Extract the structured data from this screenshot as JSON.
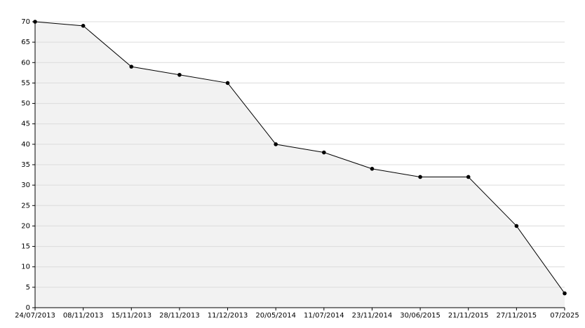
{
  "chart_data": {
    "type": "line",
    "area": true,
    "categories": [
      "24/07/2013",
      "08/11/2013",
      "15/11/2013",
      "28/11/2013",
      "11/12/2013",
      "20/05/2014",
      "11/07/2014",
      "23/11/2014",
      "30/06/2015",
      "21/11/2015",
      "27/11/2015",
      "07/2025"
    ],
    "values": [
      70,
      69,
      59,
      57,
      55,
      40,
      38,
      34,
      32,
      32,
      20,
      3.5
    ],
    "color": "#000000",
    "fill_color": "#f2f2f2",
    "ylim": [
      0,
      70
    ],
    "yticks": [
      0,
      5,
      10,
      15,
      20,
      25,
      30,
      35,
      40,
      45,
      50,
      55,
      60,
      65,
      70
    ],
    "grid": true
  }
}
